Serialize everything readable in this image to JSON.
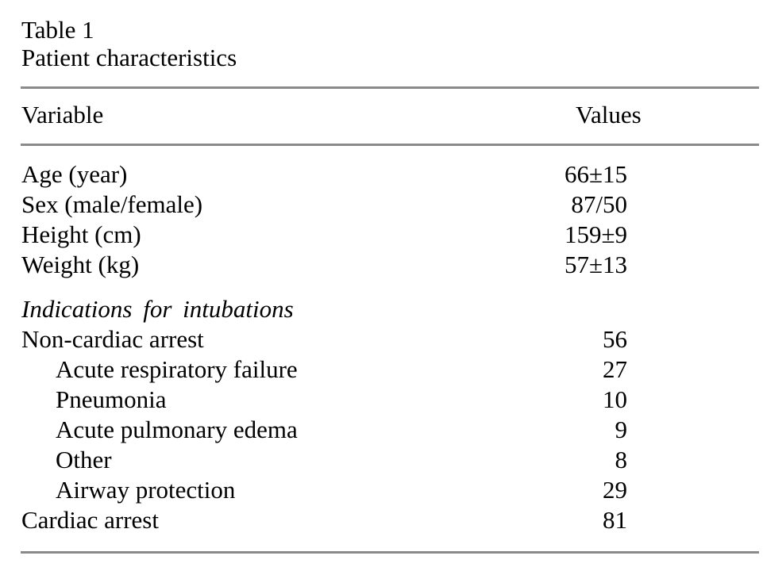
{
  "table": {
    "caption": {
      "line1": "Table 1",
      "line2": "Patient characteristics"
    },
    "columns": {
      "variable": "Variable",
      "values": "Values"
    },
    "rows": [
      {
        "label": "Age (year)",
        "value": "66±15"
      },
      {
        "label": "Sex (male/female)",
        "value": "87/50"
      },
      {
        "label": "Height (cm)",
        "value": "159±9"
      },
      {
        "label": "Weight (kg)",
        "value": "57±13"
      },
      {
        "label": "Indications for intubations",
        "value": ""
      },
      {
        "label": "Non-cardiac arrest",
        "value": "56"
      },
      {
        "label": "Acute respiratory failure",
        "value": "27"
      },
      {
        "label": "Pneumonia",
        "value": "10"
      },
      {
        "label": "Acute pulmonary edema",
        "value": "9"
      },
      {
        "label": "Other",
        "value": "8"
      },
      {
        "label": "Airway protection",
        "value": "29"
      },
      {
        "label": "Cardiac arrest",
        "value": "81"
      }
    ],
    "colors": {
      "text": "#000000",
      "rule": "#8a8a8a",
      "background": "#ffffff"
    }
  }
}
